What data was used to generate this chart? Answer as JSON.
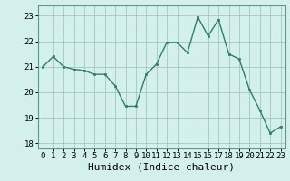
{
  "x": [
    0,
    1,
    2,
    3,
    4,
    5,
    6,
    7,
    8,
    9,
    10,
    11,
    12,
    13,
    14,
    15,
    16,
    17,
    18,
    19,
    20,
    21,
    22,
    23
  ],
  "y": [
    21.0,
    21.4,
    21.0,
    20.9,
    20.85,
    20.7,
    20.7,
    20.25,
    19.45,
    19.45,
    20.7,
    21.1,
    21.95,
    21.95,
    21.55,
    22.95,
    22.2,
    22.85,
    21.5,
    21.3,
    20.1,
    19.3,
    18.4,
    18.65
  ],
  "line_color": "#2e7d6e",
  "marker": "s",
  "markersize": 2,
  "linewidth": 1.0,
  "xlabel": "Humidex (Indice chaleur)",
  "xlabel_fontsize": 8,
  "ylim": [
    17.8,
    23.4
  ],
  "xlim": [
    -0.5,
    23.5
  ],
  "yticks": [
    18,
    19,
    20,
    21,
    22,
    23
  ],
  "xticks": [
    0,
    1,
    2,
    3,
    4,
    5,
    6,
    7,
    8,
    9,
    10,
    11,
    12,
    13,
    14,
    15,
    16,
    17,
    18,
    19,
    20,
    21,
    22,
    23
  ],
  "bg_color": "#d4f0ec",
  "grid_color": "#a0c8c0",
  "tick_fontsize": 6.5,
  "fig_bg": "#d4f0ec",
  "spine_color": "#5a9a8a"
}
